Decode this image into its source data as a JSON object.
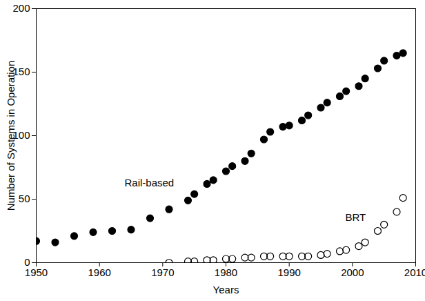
{
  "chart_data": {
    "type": "scatter",
    "x_label": "Years",
    "y_label": "Number of Systems in Operation",
    "x": [
      1950,
      1953,
      1956,
      1959,
      1962,
      1965,
      1968,
      1971,
      1974,
      1975,
      1977,
      1978,
      1980,
      1981,
      1983,
      1984,
      1986,
      1987,
      1989,
      1990,
      1992,
      1993,
      1995,
      1996,
      1998,
      1999,
      2001,
      2002,
      2004,
      2005,
      2007,
      2008
    ],
    "series": [
      {
        "name": "Rail-based",
        "color": "#000000",
        "marker": "filled_circle",
        "values": [
          17,
          16,
          21,
          24,
          25,
          26,
          35,
          42,
          49,
          54,
          62,
          65,
          72,
          76,
          80,
          86,
          97,
          103,
          107,
          108,
          112,
          116,
          122,
          126,
          131,
          135,
          139,
          145,
          153,
          159,
          163,
          165
        ]
      },
      {
        "name": "BRT",
        "color": "#000000",
        "marker": "open_circle",
        "values": [
          null,
          null,
          null,
          null,
          null,
          null,
          null,
          0,
          1,
          1,
          2,
          2,
          3,
          3,
          4,
          4,
          5,
          5,
          5,
          5,
          5,
          5,
          6,
          7,
          9,
          10,
          13,
          16,
          25,
          30,
          40,
          51
        ]
      }
    ],
    "xlim": [
      1950,
      2010
    ],
    "xticks": [
      1950,
      1960,
      1970,
      1980,
      1990,
      2000,
      2010
    ],
    "ylim": [
      0,
      200
    ],
    "yticks": [
      0,
      50,
      100,
      150,
      200
    ],
    "grid": false
  }
}
